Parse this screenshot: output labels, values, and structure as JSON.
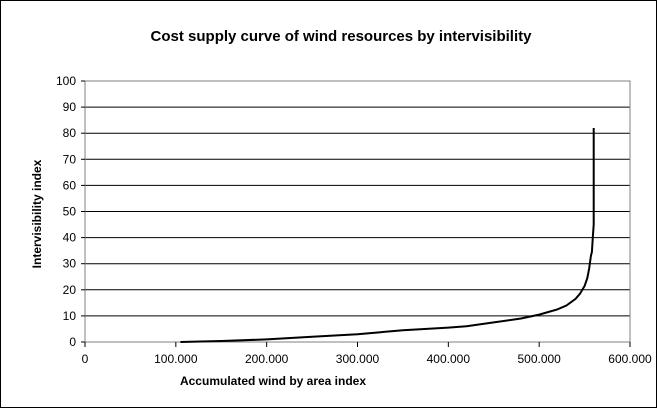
{
  "chart_data": {
    "type": "line",
    "title": "Cost supply curve of wind resources by intervisibility",
    "xlabel": "Accumulated wind by area index",
    "ylabel": "Intervisibility index",
    "xlim": [
      0,
      600000
    ],
    "ylim": [
      0,
      100
    ],
    "x_ticks": [
      0,
      100000,
      200000,
      300000,
      400000,
      500000,
      600000
    ],
    "x_tick_labels": [
      "0",
      "100.000",
      "200.000",
      "300.000",
      "400.000",
      "500.000",
      "600.000"
    ],
    "y_ticks": [
      0,
      10,
      20,
      30,
      40,
      50,
      60,
      70,
      80,
      90,
      100
    ],
    "y_tick_labels": [
      "0",
      "10",
      "20",
      "30",
      "40",
      "50",
      "60",
      "70",
      "80",
      "90",
      "100"
    ],
    "grid": "horizontal",
    "legend": "none",
    "series": [
      {
        "color": "#000000",
        "x": [
          105000,
          150000,
          200000,
          250000,
          300000,
          350000,
          400000,
          420000,
          450000,
          480000,
          500000,
          510000,
          520000,
          530000,
          540000,
          545000,
          550000,
          553000,
          555000,
          557000,
          558000,
          559000,
          560000,
          560000,
          560000,
          560000,
          560000
        ],
        "y": [
          0,
          0.4,
          1.0,
          2.0,
          3.0,
          4.5,
          5.5,
          6.0,
          7.5,
          9.0,
          10.5,
          11.5,
          12.5,
          14.0,
          16.5,
          18.5,
          21.5,
          24.5,
          28.0,
          33.0,
          34.5,
          40.0,
          45.0,
          55.0,
          65.0,
          75.0,
          82.0
        ]
      }
    ]
  }
}
